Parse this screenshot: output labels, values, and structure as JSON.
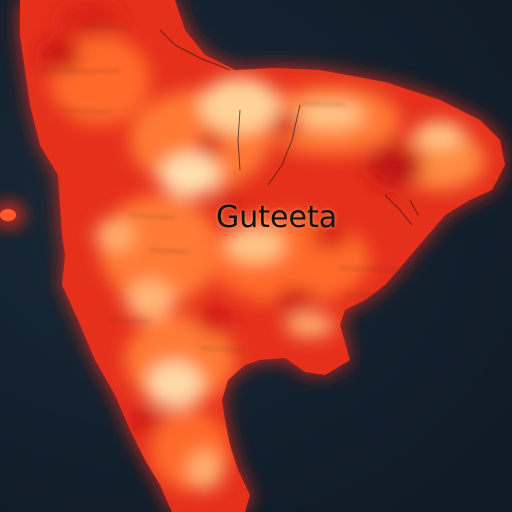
{
  "map": {
    "region_label": "Guteeta",
    "colors": {
      "ocean": "#12202d",
      "heat_low": "#e0281a",
      "heat_mid": "#ff6a2a",
      "heat_high": "#ffd9a0",
      "glow": "#ff3a1a",
      "label": "#121212"
    }
  }
}
